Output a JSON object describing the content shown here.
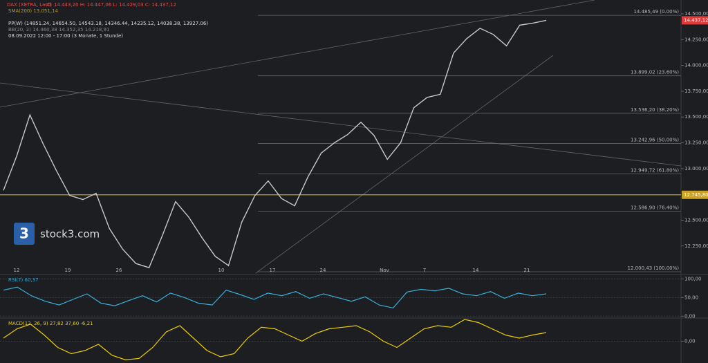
{
  "chart_data": [
    {
      "type": "line",
      "title": "DAX (XETRA, Last)",
      "legend": [
        "O: 14.443,20  H: 14.447,06  L: 14.429,03  C: 14.437,12",
        "SMA(200) 13.051,14",
        "PP(W) (14851.24, 14654.50, 14543.18, 14346.44, 14235.12, 14038.38, 13927.06)",
        "BB(20, 2) 14.460,38 14.352,35 14.218,91",
        "08.09.2022 12:00 - 17:00 (3 Monate, 1 Stunde)"
      ],
      "logo": "stock3.com",
      "x_labels": [
        "12",
        "19",
        "26",
        "10",
        "17",
        "24",
        "Nov",
        "7",
        "14",
        "21"
      ],
      "series": [
        {
          "name": "DAX",
          "color": "#c8c8c8",
          "values": [
            12790,
            13120,
            13520,
            13240,
            12980,
            12740,
            12700,
            12760,
            12420,
            12220,
            12080,
            12040,
            12350,
            12680,
            12530,
            12330,
            12150,
            12060,
            12480,
            12740,
            12880,
            12710,
            12640,
            12920,
            13150,
            13250,
            13330,
            13450,
            13320,
            13090,
            13250,
            13590,
            13690,
            13720,
            14120,
            14260,
            14360,
            14300,
            14190,
            14390,
            14410,
            14437
          ]
        }
      ],
      "ylim": [
        11987,
        14634
      ],
      "yticks": [
        {
          "value": 12250,
          "label": "12.250,00"
        },
        {
          "value": 12500,
          "label": "12.500,00"
        },
        {
          "value": 13000,
          "label": "13.000,00"
        },
        {
          "value": 13250,
          "label": "13.250,00"
        },
        {
          "value": 13500,
          "label": "13.500,00"
        },
        {
          "value": 13750,
          "label": "13.750,00"
        },
        {
          "value": 14000,
          "label": "14.000,00"
        },
        {
          "value": 14250,
          "label": "14.250,00"
        },
        {
          "value": 14500,
          "label": "14.500,00"
        }
      ],
      "levels": [
        {
          "value": 14485.49,
          "label": "14.485,49 (0.00%)"
        },
        {
          "value": 13899.02,
          "label": "13.899,02 (23.60%)"
        },
        {
          "value": 13536.2,
          "label": "13.536,20 (38.20%)"
        },
        {
          "value": 13242.96,
          "label": "13.242,96 (50.00%)"
        },
        {
          "value": 12949.72,
          "label": "12.949,72 (61.80%)"
        },
        {
          "value": 12586.9,
          "label": "12.586,90 (76.40%)"
        },
        {
          "value": 12000.43,
          "label": "12.000,43 (100.00%)"
        }
      ],
      "support": {
        "value": 12745.8,
        "label": "12.745,80",
        "color": "#c9a227"
      },
      "last": {
        "value": 14437.12,
        "label": "14.437,12",
        "color": "#e03a3a"
      }
    },
    {
      "type": "line",
      "title": "RSI(7) 60,37",
      "series": [
        {
          "name": "RSI",
          "color": "#3ab0d8",
          "values": [
            70,
            78,
            55,
            40,
            30,
            45,
            60,
            35,
            28,
            42,
            55,
            38,
            62,
            50,
            35,
            30,
            70,
            58,
            45,
            62,
            55,
            66,
            48,
            60,
            50,
            40,
            52,
            30,
            22,
            65,
            72,
            68,
            75,
            60,
            55,
            66,
            48,
            62,
            55,
            60
          ]
        }
      ],
      "ylim": [
        -5,
        110
      ],
      "yticks": [
        {
          "value": 0,
          "label": "0,00"
        },
        {
          "value": 50,
          "label": "50,00"
        },
        {
          "value": 100,
          "label": "100,00"
        }
      ]
    },
    {
      "type": "line",
      "title": "MACD(12, 26, 9) 27,82 37,60 -6,21",
      "series": [
        {
          "name": "MACD",
          "color": "#f0d000",
          "values": [
            10,
            40,
            55,
            20,
            -20,
            -40,
            -30,
            -10,
            -45,
            -60,
            -55,
            -20,
            30,
            50,
            10,
            -30,
            -50,
            -40,
            10,
            45,
            40,
            20,
            0,
            25,
            40,
            45,
            50,
            30,
            0,
            -20,
            10,
            40,
            50,
            45,
            70,
            60,
            40,
            20,
            10,
            20,
            27.82
          ]
        }
      ],
      "ylim": [
        -70,
        70
      ],
      "yticks": [
        {
          "value": 0,
          "label": "0,00"
        }
      ]
    }
  ]
}
